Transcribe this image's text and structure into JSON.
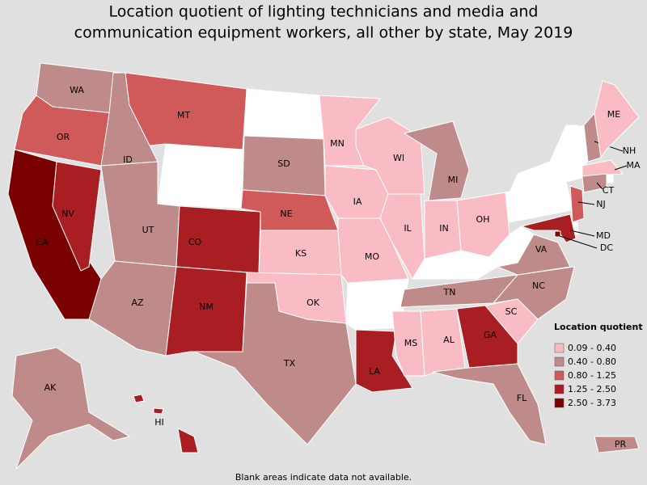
{
  "title": [
    "Location quotient of lighting technicians and media and",
    "communication equipment workers, all other by state, May 2019"
  ],
  "legend": {
    "title": "Location quotient",
    "items": [
      {
        "label": "0.09 - 0.40",
        "color": "#f9bcc4"
      },
      {
        "label": "0.40 - 0.80",
        "color": "#bf8a8a"
      },
      {
        "label": "0.80 - 1.25",
        "color": "#d05a5a"
      },
      {
        "label": "1.25 - 2.50",
        "color": "#a81e22"
      },
      {
        "label": "2.50 - 3.73",
        "color": "#7a0000"
      }
    ]
  },
  "states": [
    {
      "label": "WA",
      "class": 1
    },
    {
      "label": "OR",
      "class": 2
    },
    {
      "label": "CA",
      "class": 4
    },
    {
      "label": "NV",
      "class": 3
    },
    {
      "label": "ID",
      "class": 1
    },
    {
      "label": "MT",
      "class": 2
    },
    {
      "label": "UT",
      "class": 1
    },
    {
      "label": "AZ",
      "class": 1
    },
    {
      "label": "CO",
      "class": 3
    },
    {
      "label": "NM",
      "class": 3
    },
    {
      "label": "SD",
      "class": 1
    },
    {
      "label": "NE",
      "class": 2
    },
    {
      "label": "KS",
      "class": 0
    },
    {
      "label": "OK",
      "class": 0
    },
    {
      "label": "TX",
      "class": 1
    },
    {
      "label": "MN",
      "class": 0
    },
    {
      "label": "IA",
      "class": 0
    },
    {
      "label": "MO",
      "class": 0
    },
    {
      "label": "LA",
      "class": 3
    },
    {
      "label": "WI",
      "class": 0
    },
    {
      "label": "IL",
      "class": 0
    },
    {
      "label": "MI",
      "class": 1
    },
    {
      "label": "IN",
      "class": 0
    },
    {
      "label": "OH",
      "class": 0
    },
    {
      "label": "TN",
      "class": 1
    },
    {
      "label": "MS",
      "class": 0
    },
    {
      "label": "AL",
      "class": 0
    },
    {
      "label": "GA",
      "class": 3
    },
    {
      "label": "FL",
      "class": 1
    },
    {
      "label": "SC",
      "class": 0
    },
    {
      "label": "NC",
      "class": 1
    },
    {
      "label": "VA",
      "class": 1
    },
    {
      "label": "NH",
      "class": 1
    },
    {
      "label": "ME",
      "class": 0
    },
    {
      "label": "MA",
      "class": 0
    },
    {
      "label": "CT",
      "class": 1
    },
    {
      "label": "NJ",
      "class": 2
    },
    {
      "label": "MD",
      "class": 3
    },
    {
      "label": "DC",
      "class": 4
    },
    {
      "label": "AK",
      "class": 1
    },
    {
      "label": "HI",
      "class": 3
    },
    {
      "label": "PR",
      "class": 1
    }
  ],
  "note": "Blank areas indicate data not available."
}
